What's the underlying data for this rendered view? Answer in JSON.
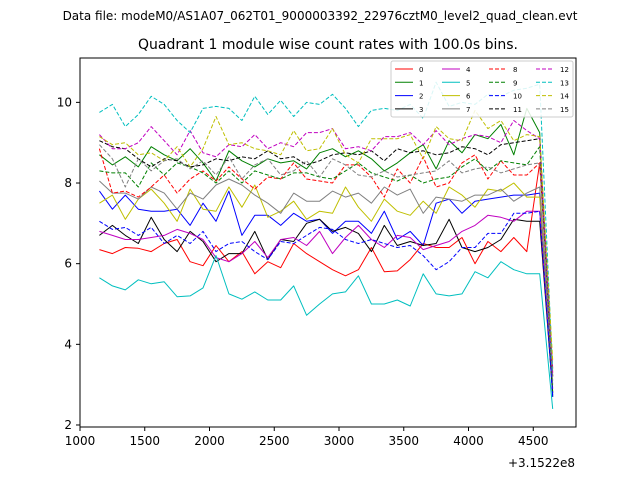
{
  "figure": {
    "suptitle": "Data file: modeM0/AS1A07_062T01_9000003392_22976cztM0_level2_quad_clean.evt"
  },
  "chart_data": {
    "type": "line",
    "title": "Quadrant 1 module wise count rates with 100.0s bins.",
    "xlabel": "",
    "ylabel": "",
    "x_offset_label": "+3.1522e8",
    "xlim": [
      1000,
      4830
    ],
    "ylim": [
      1.95,
      11.1
    ],
    "xticks": [
      1000,
      1500,
      2000,
      2500,
      3000,
      3500,
      4000,
      4500
    ],
    "yticks": [
      2,
      4,
      6,
      8,
      10
    ],
    "grid": false,
    "legend_position": "top-right",
    "legend_columns": 4,
    "x": [
      1150,
      1250,
      1350,
      1450,
      1550,
      1650,
      1750,
      1850,
      1950,
      2050,
      2150,
      2250,
      2350,
      2450,
      2550,
      2650,
      2750,
      2850,
      2950,
      3050,
      3150,
      3250,
      3350,
      3450,
      3550,
      3650,
      3750,
      3850,
      3950,
      4050,
      4150,
      4250,
      4350,
      4450,
      4550,
      4650
    ],
    "series": [
      {
        "name": "0",
        "color": "#ff0000",
        "dash": "solid",
        "values": [
          6.35,
          6.25,
          6.4,
          6.38,
          6.3,
          6.5,
          6.6,
          6.05,
          5.95,
          6.45,
          6.05,
          6.3,
          5.75,
          6.05,
          5.9,
          6.5,
          6.25,
          6.05,
          5.85,
          5.7,
          5.85,
          6.4,
          5.8,
          5.82,
          6.1,
          6.5,
          6.4,
          6.4,
          6.65,
          6.0,
          6.55,
          6.3,
          6.65,
          6.3,
          8.5,
          3.3
        ]
      },
      {
        "name": "1",
        "color": "#008000",
        "dash": "solid",
        "values": [
          8.7,
          8.45,
          8.65,
          8.4,
          8.9,
          8.7,
          8.55,
          8.85,
          8.5,
          8.05,
          8.8,
          8.55,
          8.4,
          8.6,
          8.5,
          8.55,
          8.35,
          8.75,
          8.85,
          8.65,
          8.8,
          8.6,
          8.3,
          8.5,
          8.75,
          8.95,
          8.35,
          9.05,
          8.75,
          9.2,
          9.1,
          9.45,
          8.7,
          9.85,
          9.25,
          2.7
        ]
      },
      {
        "name": "2",
        "color": "#0000ff",
        "dash": "solid",
        "values": [
          7.8,
          7.35,
          7.7,
          7.35,
          7.3,
          7.3,
          7.35,
          6.95,
          7.5,
          7.05,
          7.8,
          6.7,
          7.2,
          7.2,
          6.95,
          7.25,
          7.05,
          7.1,
          6.75,
          7.05,
          7.05,
          6.75,
          7.3,
          6.6,
          6.8,
          6.45,
          7.5,
          7.6,
          7.25,
          7.55,
          7.6,
          7.65,
          7.7,
          7.7,
          7.75,
          2.7
        ]
      },
      {
        "name": "3",
        "color": "#000000",
        "dash": "solid",
        "values": [
          6.7,
          6.95,
          6.7,
          6.5,
          7.15,
          6.6,
          6.3,
          6.8,
          6.55,
          6.05,
          6.25,
          6.25,
          6.8,
          6.1,
          6.6,
          6.55,
          7.0,
          7.1,
          6.8,
          6.9,
          6.75,
          6.3,
          6.95,
          6.45,
          6.55,
          6.45,
          6.5,
          7.1,
          6.4,
          6.3,
          6.4,
          6.6,
          7.1,
          7.05,
          7.05,
          2.8
        ]
      },
      {
        "name": "4",
        "color": "#c000c0",
        "dash": "solid",
        "values": [
          6.8,
          6.7,
          6.6,
          6.6,
          6.65,
          6.7,
          6.85,
          6.75,
          6.6,
          6.15,
          6.05,
          6.25,
          6.55,
          6.15,
          6.6,
          6.65,
          6.45,
          6.8,
          6.25,
          6.65,
          6.95,
          6.6,
          6.4,
          6.7,
          6.65,
          6.35,
          6.45,
          6.55,
          6.8,
          6.95,
          7.2,
          7.15,
          7.05,
          7.3,
          7.3,
          2.9
        ]
      },
      {
        "name": "5",
        "color": "#00bfbf",
        "dash": "solid",
        "values": [
          5.65,
          5.45,
          5.35,
          5.6,
          5.5,
          5.55,
          5.18,
          5.2,
          5.4,
          6.2,
          5.25,
          5.12,
          5.3,
          5.1,
          5.1,
          5.45,
          4.72,
          5.0,
          5.25,
          5.3,
          5.7,
          5.0,
          5.0,
          5.1,
          4.95,
          5.75,
          5.25,
          5.2,
          5.25,
          5.8,
          5.65,
          6.05,
          5.85,
          5.75,
          5.75,
          2.4
        ]
      },
      {
        "name": "6",
        "color": "#bfbf00",
        "dash": "solid",
        "values": [
          7.5,
          7.7,
          7.1,
          7.6,
          7.85,
          7.5,
          7.05,
          7.85,
          7.35,
          7.3,
          7.9,
          7.4,
          7.95,
          7.15,
          7.3,
          7.55,
          7.1,
          7.3,
          7.25,
          7.9,
          7.4,
          7.05,
          7.6,
          7.3,
          7.2,
          7.55,
          7.25,
          7.9,
          7.7,
          7.4,
          7.85,
          7.8,
          8.0,
          7.65,
          7.65,
          3.2
        ]
      },
      {
        "name": "7",
        "color": "#808080",
        "dash": "solid",
        "values": [
          8.05,
          7.75,
          7.75,
          7.6,
          7.9,
          7.75,
          7.35,
          7.75,
          7.6,
          7.95,
          8.1,
          7.95,
          7.7,
          7.5,
          7.25,
          7.75,
          7.55,
          7.55,
          7.8,
          7.65,
          7.75,
          7.5,
          7.9,
          7.7,
          7.85,
          7.25,
          7.65,
          7.6,
          7.55,
          7.7,
          7.7,
          7.85,
          7.55,
          7.75,
          7.9,
          3.0
        ]
      },
      {
        "name": "8",
        "color": "#ff0000",
        "dash": "dashed",
        "values": [
          8.85,
          7.75,
          7.8,
          7.65,
          7.9,
          8.2,
          7.75,
          8.1,
          8.3,
          8.05,
          8.4,
          8.1,
          7.85,
          8.15,
          8.1,
          8.5,
          8.1,
          8.05,
          8.0,
          8.45,
          8.45,
          8.15,
          7.65,
          8.35,
          8.0,
          8.65,
          7.9,
          8.0,
          8.5,
          8.7,
          8.1,
          8.55,
          8.2,
          8.2,
          8.5,
          3.4
        ]
      },
      {
        "name": "9",
        "color": "#008000",
        "dash": "dashed",
        "values": [
          8.3,
          8.25,
          8.25,
          7.9,
          8.5,
          8.2,
          8.5,
          8.4,
          8.25,
          8.0,
          8.3,
          8.0,
          8.3,
          8.2,
          8.1,
          8.25,
          8.25,
          8.15,
          8.1,
          8.3,
          8.5,
          8.25,
          8.15,
          8.05,
          8.2,
          8.0,
          8.1,
          8.15,
          8.4,
          8.6,
          8.3,
          8.55,
          8.5,
          8.45,
          8.9,
          2.8
        ]
      },
      {
        "name": "10",
        "color": "#0000ff",
        "dash": "dashed",
        "values": [
          7.05,
          6.85,
          6.9,
          6.7,
          6.9,
          6.5,
          6.7,
          6.5,
          6.8,
          6.3,
          6.5,
          6.55,
          6.3,
          6.1,
          6.55,
          6.5,
          6.7,
          6.9,
          6.85,
          6.6,
          6.5,
          6.6,
          6.5,
          6.4,
          6.45,
          6.2,
          5.85,
          6.05,
          6.4,
          6.4,
          6.75,
          6.75,
          7.25,
          7.25,
          7.3,
          2.75
        ]
      },
      {
        "name": "11",
        "color": "#000000",
        "dash": "dashed",
        "values": [
          9.05,
          8.9,
          8.85,
          8.6,
          8.4,
          8.6,
          8.55,
          8.4,
          8.45,
          8.6,
          8.55,
          8.65,
          8.6,
          8.8,
          8.6,
          8.65,
          8.45,
          8.55,
          8.7,
          8.75,
          8.7,
          8.8,
          8.55,
          8.85,
          8.75,
          8.8,
          8.7,
          8.75,
          8.9,
          8.85,
          8.7,
          8.95,
          9.0,
          9.05,
          9.1,
          3.2
        ]
      },
      {
        "name": "12",
        "color": "#c000c0",
        "dash": "dashed",
        "values": [
          9.2,
          8.85,
          8.85,
          9.0,
          9.4,
          9.05,
          8.7,
          9.3,
          8.75,
          8.65,
          8.95,
          8.9,
          9.2,
          8.85,
          9.0,
          8.9,
          9.25,
          9.25,
          9.35,
          8.85,
          8.9,
          8.8,
          9.15,
          9.15,
          9.25,
          8.95,
          9.3,
          8.95,
          9.1,
          9.2,
          9.15,
          9.0,
          9.55,
          9.3,
          9.1,
          3.2
        ]
      },
      {
        "name": "13",
        "color": "#00bfbf",
        "dash": "dashed",
        "values": [
          9.75,
          9.95,
          9.4,
          9.7,
          10.15,
          9.95,
          9.55,
          9.25,
          9.85,
          9.9,
          9.85,
          9.55,
          10.15,
          9.7,
          10.05,
          9.65,
          10.0,
          9.95,
          10.2,
          9.85,
          9.4,
          9.8,
          9.85,
          9.8,
          9.95,
          9.6,
          10.5,
          9.9,
          10.0,
          9.95,
          10.2,
          10.15,
          10.3,
          10.35,
          10.45,
          3.3
        ]
      },
      {
        "name": "14",
        "color": "#bfbf00",
        "dash": "dashed",
        "values": [
          9.15,
          8.95,
          9.0,
          8.7,
          8.75,
          8.55,
          8.9,
          8.4,
          8.85,
          9.65,
          8.95,
          9.0,
          8.85,
          8.8,
          8.7,
          9.3,
          8.8,
          8.85,
          9.35,
          8.7,
          8.5,
          9.1,
          9.1,
          9.1,
          9.2,
          8.6,
          9.4,
          9.1,
          9.05,
          9.8,
          9.35,
          9.55,
          9.05,
          9.2,
          9.15,
          3.6
        ]
      },
      {
        "name": "15",
        "color": "#808080",
        "dash": "dashed",
        "values": [
          8.95,
          8.6,
          7.9,
          8.6,
          8.3,
          8.55,
          8.6,
          8.35,
          8.55,
          8.2,
          8.65,
          8.1,
          8.45,
          8.6,
          8.2,
          8.3,
          8.55,
          8.15,
          8.6,
          8.45,
          8.2,
          8.15,
          8.3,
          8.15,
          8.2,
          8.25,
          8.3,
          8.55,
          8.25,
          8.35,
          8.4,
          8.25,
          8.35,
          8.45,
          8.5,
          3.1
        ]
      }
    ]
  }
}
